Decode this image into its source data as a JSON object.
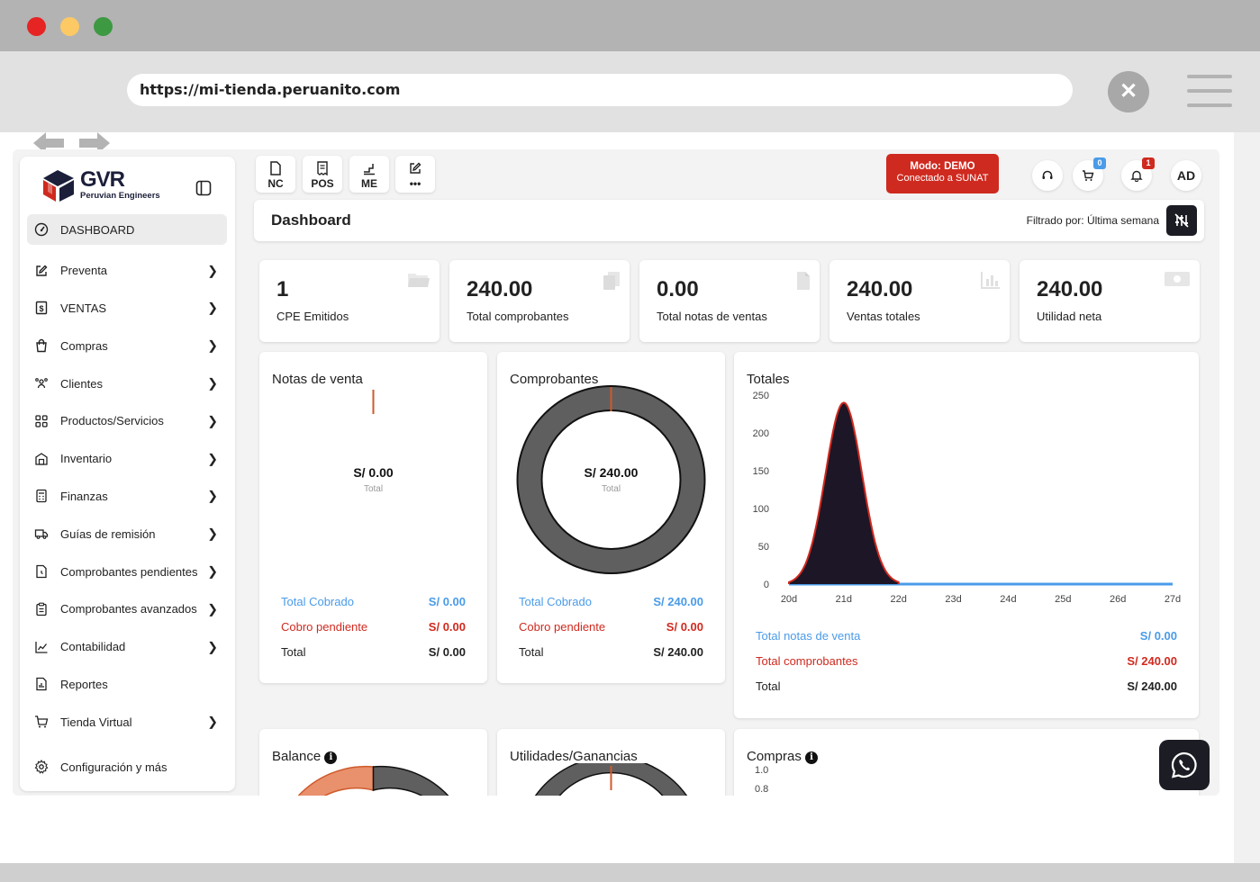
{
  "browser": {
    "url": "https://mi-tienda.peruanito.com",
    "close_icon": "x-icon",
    "traffic_lights": [
      "#e62424",
      "#fcc965",
      "#3d9942"
    ]
  },
  "brand": {
    "logo_text": "GVR",
    "tagline": "Peruvian Engineers"
  },
  "sidebar": {
    "items": [
      {
        "label": "DASHBOARD",
        "icon": "gauge-icon",
        "active": true,
        "chevron": false
      },
      {
        "label": "Preventa",
        "icon": "edit-icon",
        "chevron": true
      },
      {
        "label": "VENTAS",
        "icon": "invoice-dollar-icon",
        "chevron": true
      },
      {
        "label": "Compras",
        "icon": "shopping-bag-icon",
        "chevron": true
      },
      {
        "label": "Clientes",
        "icon": "users-icon",
        "chevron": true
      },
      {
        "label": "Productos/Servicios",
        "icon": "grid-icon",
        "chevron": true
      },
      {
        "label": "Inventario",
        "icon": "warehouse-icon",
        "chevron": true
      },
      {
        "label": "Finanzas",
        "icon": "calculator-icon",
        "chevron": true
      },
      {
        "label": "Guías de remisión",
        "icon": "truck-icon",
        "chevron": true
      },
      {
        "label": "Comprobantes pendientes",
        "icon": "file-clock-icon",
        "chevron": true
      },
      {
        "label": "Comprobantes avanzados",
        "icon": "clipboard-icon",
        "chevron": true
      },
      {
        "label": "Contabilidad",
        "icon": "chart-line-icon",
        "chevron": true
      },
      {
        "label": "Reportes",
        "icon": "file-chart-icon",
        "chevron": false
      },
      {
        "label": "Tienda Virtual",
        "icon": "cart-icon",
        "chevron": true
      },
      {
        "label": "Configuración y más",
        "icon": "gear-icon",
        "chevron": false
      }
    ]
  },
  "toolbar": {
    "buttons": [
      {
        "label": "NC",
        "icon": "file-icon"
      },
      {
        "label": "POS",
        "icon": "receipt-icon"
      },
      {
        "label": "ME",
        "icon": "steps-icon"
      },
      {
        "label": "•••",
        "icon": "pencil-icon"
      }
    ],
    "demo_line1": "Modo: DEMO",
    "demo_line2": "Conectado a SUNAT",
    "cart_badge": "0",
    "notif_badge": "1",
    "avatar": "AD"
  },
  "header": {
    "title": "Dashboard",
    "filter_text": "Filtrado por: Última semana"
  },
  "stats": [
    {
      "value": "1",
      "label": "CPE Emitidos",
      "icon": "folder-icon"
    },
    {
      "value": "240.00",
      "label": "Total comprobantes",
      "icon": "copy-icon"
    },
    {
      "value": "0.00",
      "label": "Total notas de ventas",
      "icon": "document-icon"
    },
    {
      "value": "240.00",
      "label": "Ventas totales",
      "icon": "bar-chart-icon"
    },
    {
      "value": "240.00",
      "label": "Utilidad neta",
      "icon": "money-icon"
    }
  ],
  "notas": {
    "title": "Notas de venta",
    "center_value": "S/ 0.00",
    "center_label": "Total",
    "rows": [
      {
        "label": "Total Cobrado",
        "value": "S/ 0.00"
      },
      {
        "label": "Cobro pendiente",
        "value": "S/ 0.00"
      },
      {
        "label": "Total",
        "value": "S/ 0.00"
      }
    ]
  },
  "comprobantes": {
    "title": "Comprobantes",
    "center_value": "S/ 240.00",
    "center_label": "Total",
    "rows": [
      {
        "label": "Total Cobrado",
        "value": "S/ 240.00"
      },
      {
        "label": "Cobro pendiente",
        "value": "S/ 0.00"
      },
      {
        "label": "Total",
        "value": "S/ 240.00"
      }
    ]
  },
  "totales": {
    "title": "Totales",
    "rows": [
      {
        "label": "Total notas de venta",
        "value": "S/ 0.00"
      },
      {
        "label": "Total comprobantes",
        "value": "S/ 240.00"
      },
      {
        "label": "Total",
        "value": "S/ 240.00"
      }
    ]
  },
  "bottom_cards": {
    "balance": "Balance",
    "utilidades": "Utilidades/Ganancias",
    "compras": "Compras",
    "compras_ticks": [
      "1.0",
      "0.8"
    ]
  },
  "chart_data": {
    "type": "area",
    "title": "Totales",
    "x": [
      "20d",
      "21d",
      "22d",
      "23d",
      "24d",
      "25d",
      "26d",
      "27d"
    ],
    "y_ticks": [
      0,
      50,
      100,
      150,
      200,
      250
    ],
    "ylim": [
      0,
      250
    ],
    "series": [
      {
        "values": [
          0,
          240,
          0,
          0,
          0,
          0,
          0,
          0
        ],
        "color": "#cf2a1f",
        "fill": "#1c1626",
        "smooth": true
      },
      {
        "values": [
          0,
          0,
          0,
          0,
          0,
          0,
          0,
          0
        ],
        "color": "#4a9be8"
      }
    ]
  }
}
